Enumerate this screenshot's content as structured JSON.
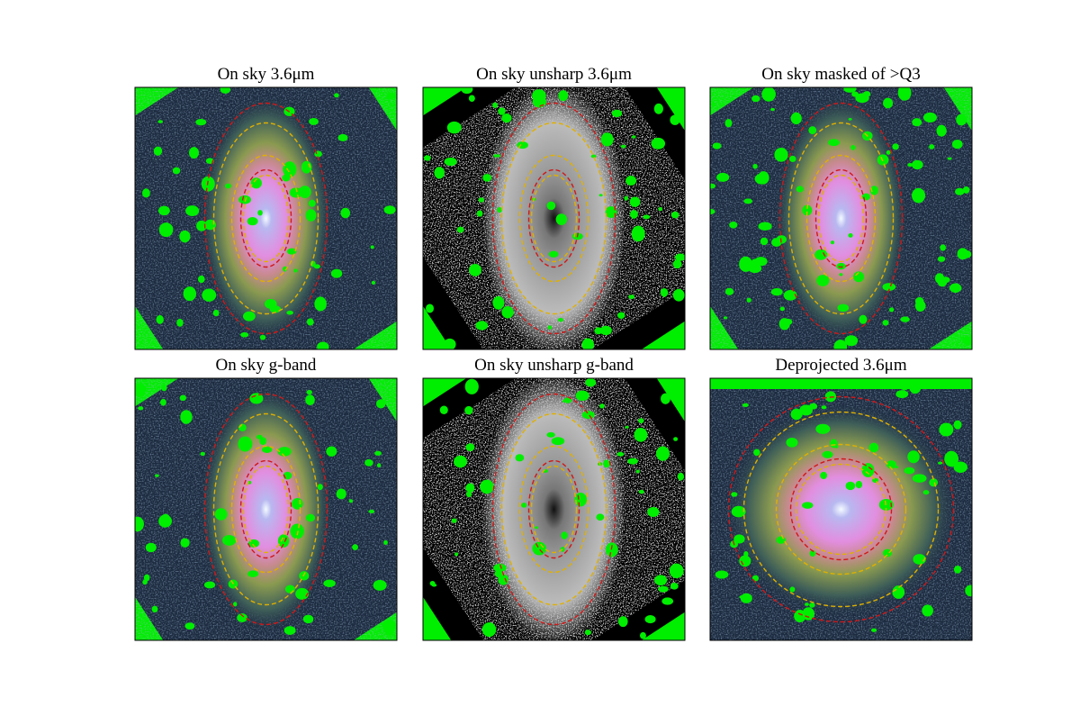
{
  "panels": [
    {
      "title": "On sky 3.6μm"
    },
    {
      "title": "On sky unsharp 3.6μm"
    },
    {
      "title": "On sky masked of >Q3"
    },
    {
      "title": "On sky g-band"
    },
    {
      "title": "On sky unsharp g-band"
    },
    {
      "title": "Deprojected 3.6μm"
    }
  ]
}
